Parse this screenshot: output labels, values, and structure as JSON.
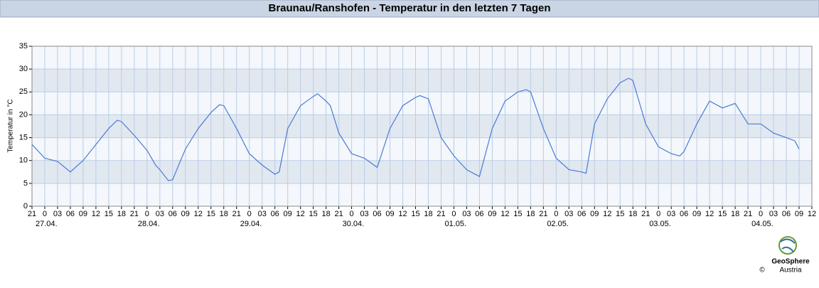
{
  "chart_data": {
    "type": "line",
    "title": "Braunau/Ranshofen - Temperatur in den letzten 7 Tagen",
    "y_label": "Temperatur in °C",
    "x": [
      "26.04. 21",
      "27.04. 00",
      "27.04. 03",
      "27.04. 06",
      "27.04. 09",
      "27.04. 12",
      "27.04. 15",
      "27.04. 17",
      "27.04. 18",
      "27.04. 21",
      "28.04. 00",
      "28.04. 02",
      "28.04. 03",
      "28.04. 05",
      "28.04. 06",
      "28.04. 09",
      "28.04. 12",
      "28.04. 15",
      "28.04. 17",
      "28.04. 18",
      "28.04. 21",
      "29.04. 00",
      "29.04. 03",
      "29.04. 06",
      "29.04. 07",
      "29.04. 09",
      "29.04. 12",
      "29.04. 15",
      "29.04. 16",
      "29.04. 18",
      "29.04. 19",
      "29.04. 21",
      "30.04. 00",
      "30.04. 03",
      "30.04. 06",
      "30.04. 09",
      "30.04. 12",
      "30.04. 15",
      "30.04. 16",
      "30.04. 18",
      "30.04. 21",
      "01.05. 00",
      "01.05. 03",
      "01.05. 06",
      "01.05. 09",
      "01.05. 12",
      "01.05. 15",
      "01.05. 17",
      "01.05. 18",
      "01.05. 21",
      "02.05. 00",
      "02.05. 03",
      "02.05. 06",
      "02.05. 07",
      "02.05. 09",
      "02.05. 12",
      "02.05. 15",
      "02.05. 17",
      "02.05. 18",
      "02.05. 21",
      "03.05. 00",
      "03.05. 03",
      "03.05. 05",
      "03.05. 06",
      "03.05. 09",
      "03.05. 12",
      "03.05. 15",
      "03.05. 18",
      "03.05. 21",
      "04.05. 00",
      "04.05. 03",
      "04.05. 06",
      "04.05. 08",
      "04.05. 09"
    ],
    "series": [
      {
        "color": "#4a7bd6",
        "values": [
          13.5,
          10.5,
          9.8,
          7.5,
          10,
          13.5,
          17,
          18.8,
          18.5,
          15.5,
          12.2,
          9,
          8,
          5.6,
          5.8,
          12.5,
          17,
          20.5,
          22.2,
          22,
          17,
          11.5,
          9,
          7,
          7.5,
          17,
          22,
          24,
          24.6,
          23,
          22,
          16,
          11.5,
          10.5,
          8.5,
          17,
          22,
          23.8,
          24.2,
          23.5,
          15,
          11,
          8,
          6.5,
          17,
          23,
          25,
          25.5,
          25,
          17,
          10.5,
          8,
          7.5,
          7.2,
          18,
          23.5,
          27,
          28,
          27.5,
          18,
          13,
          11.5,
          11,
          12,
          18,
          23,
          21.5,
          22.5,
          18,
          18,
          16,
          15,
          14.3,
          12.5
        ]
      }
    ],
    "xlim": [
      "26.04. 21",
      "04.05. 12"
    ],
    "xticks": [
      {
        "value": "26.04. 21",
        "label": "21"
      },
      {
        "value": "27.04. 00",
        "label": "0"
      },
      {
        "value": "27.04. 03",
        "label": "03"
      },
      {
        "value": "27.04. 06",
        "label": "06"
      },
      {
        "value": "27.04. 09",
        "label": "09"
      },
      {
        "value": "27.04. 12",
        "label": "12"
      },
      {
        "value": "27.04. 15",
        "label": "15"
      },
      {
        "value": "27.04. 18",
        "label": "18"
      },
      {
        "value": "27.04. 21",
        "label": "21"
      },
      {
        "value": "28.04. 00",
        "label": "0"
      },
      {
        "value": "28.04. 03",
        "label": "03"
      },
      {
        "value": "28.04. 06",
        "label": "06"
      },
      {
        "value": "28.04. 09",
        "label": "09"
      },
      {
        "value": "28.04. 12",
        "label": "12"
      },
      {
        "value": "28.04. 15",
        "label": "15"
      },
      {
        "value": "28.04. 18",
        "label": "18"
      },
      {
        "value": "28.04. 21",
        "label": "21"
      },
      {
        "value": "29.04. 00",
        "label": "0"
      },
      {
        "value": "29.04. 03",
        "label": "03"
      },
      {
        "value": "29.04. 06",
        "label": "06"
      },
      {
        "value": "29.04. 09",
        "label": "09"
      },
      {
        "value": "29.04. 12",
        "label": "12"
      },
      {
        "value": "29.04. 15",
        "label": "15"
      },
      {
        "value": "29.04. 18",
        "label": "18"
      },
      {
        "value": "29.04. 21",
        "label": "21"
      },
      {
        "value": "30.04. 00",
        "label": "0"
      },
      {
        "value": "30.04. 03",
        "label": "03"
      },
      {
        "value": "30.04. 06",
        "label": "06"
      },
      {
        "value": "30.04. 09",
        "label": "09"
      },
      {
        "value": "30.04. 12",
        "label": "12"
      },
      {
        "value": "30.04. 15",
        "label": "15"
      },
      {
        "value": "30.04. 18",
        "label": "18"
      },
      {
        "value": "30.04. 21",
        "label": "21"
      },
      {
        "value": "01.05. 00",
        "label": "0"
      },
      {
        "value": "01.05. 03",
        "label": "03"
      },
      {
        "value": "01.05. 06",
        "label": "06"
      },
      {
        "value": "01.05. 09",
        "label": "09"
      },
      {
        "value": "01.05. 12",
        "label": "12"
      },
      {
        "value": "01.05. 15",
        "label": "15"
      },
      {
        "value": "01.05. 18",
        "label": "18"
      },
      {
        "value": "01.05. 21",
        "label": "21"
      },
      {
        "value": "02.05. 00",
        "label": "0"
      },
      {
        "value": "02.05. 03",
        "label": "03"
      },
      {
        "value": "02.05. 06",
        "label": "06"
      },
      {
        "value": "02.05. 09",
        "label": "09"
      },
      {
        "value": "02.05. 12",
        "label": "12"
      },
      {
        "value": "02.05. 15",
        "label": "15"
      },
      {
        "value": "02.05. 18",
        "label": "18"
      },
      {
        "value": "02.05. 21",
        "label": "21"
      },
      {
        "value": "03.05. 00",
        "label": "0"
      },
      {
        "value": "03.05. 03",
        "label": "03"
      },
      {
        "value": "03.05. 06",
        "label": "06"
      },
      {
        "value": "03.05. 09",
        "label": "09"
      },
      {
        "value": "03.05. 12",
        "label": "12"
      },
      {
        "value": "03.05. 15",
        "label": "15"
      },
      {
        "value": "03.05. 18",
        "label": "18"
      },
      {
        "value": "03.05. 21",
        "label": "21"
      },
      {
        "value": "04.05. 00",
        "label": "0"
      },
      {
        "value": "04.05. 03",
        "label": "03"
      },
      {
        "value": "04.05. 06",
        "label": "06"
      },
      {
        "value": "04.05. 09",
        "label": "09"
      },
      {
        "value": "04.05. 12",
        "label": "12"
      }
    ],
    "xdate_labels": [
      "27.04.",
      "28.04.",
      "29.04.",
      "30.04.",
      "01.05.",
      "02.05.",
      "03.05.",
      "04.05."
    ],
    "ylim": [
      0,
      35
    ],
    "yticks": [
      0,
      5,
      10,
      15,
      20,
      25,
      30,
      35
    ],
    "grid": true
  },
  "logo": {
    "name": "GeoSphere",
    "sub": "Austria",
    "copyright": "©"
  }
}
